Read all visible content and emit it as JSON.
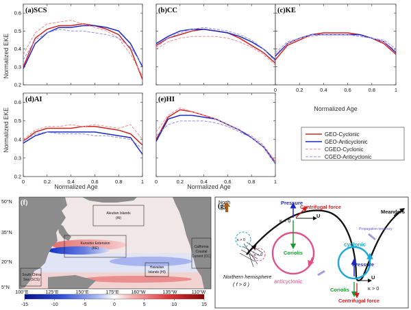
{
  "charts": {
    "xlabel": "Normalized Age",
    "ylabel": "Normalized EKE",
    "xticks": [
      "0",
      "0.2",
      "0.4",
      "0.6",
      "0.8",
      "1"
    ],
    "yticks": [
      "0.2",
      "0.3",
      "0.4",
      "0.5",
      "0.6"
    ],
    "xticks_kev": [
      "0",
      "0.2",
      "0.4",
      "0.6",
      "0.8",
      "1"
    ]
  },
  "legend": {
    "items": [
      {
        "label": "GEO-Cyclonic",
        "color": "#d22020",
        "dash": false
      },
      {
        "label": "GEO-Anticyclonic",
        "color": "#1a28c8",
        "dash": false
      },
      {
        "label": "CGEO-Cyclonic",
        "color": "#f08a8a",
        "dash": true
      },
      {
        "label": "CGEO-Anticyclonic",
        "color": "#8a90f0",
        "dash": true
      }
    ]
  },
  "chart_data": [
    {
      "type": "line",
      "panel": "(a)",
      "title": "SCS",
      "ylim": [
        0.2,
        0.65
      ],
      "xlim": [
        0,
        1
      ],
      "x": [
        0,
        0.1,
        0.2,
        0.3,
        0.4,
        0.5,
        0.6,
        0.7,
        0.8,
        0.9,
        1
      ],
      "series": [
        {
          "name": "GEO-Cyclonic",
          "values": [
            0.3,
            0.46,
            0.51,
            0.53,
            0.53,
            0.54,
            0.53,
            0.51,
            0.48,
            0.4,
            0.23
          ]
        },
        {
          "name": "GEO-Anticyclonic",
          "values": [
            0.29,
            0.43,
            0.49,
            0.52,
            0.52,
            0.53,
            0.53,
            0.52,
            0.5,
            0.43,
            0.3
          ]
        },
        {
          "name": "CGEO-Cyclonic",
          "values": [
            0.37,
            0.49,
            0.54,
            0.55,
            0.56,
            0.54,
            0.52,
            0.5,
            0.46,
            0.37,
            0.25
          ]
        },
        {
          "name": "CGEO-Anticyclonic",
          "values": [
            0.34,
            0.45,
            0.49,
            0.51,
            0.5,
            0.5,
            0.49,
            0.48,
            0.46,
            0.41,
            0.31
          ]
        }
      ]
    },
    {
      "type": "line",
      "panel": "(b)",
      "title": "CC",
      "ylim": [
        0.2,
        0.65
      ],
      "xlim": [
        0,
        1
      ],
      "x": [
        0,
        0.1,
        0.2,
        0.3,
        0.4,
        0.5,
        0.6,
        0.7,
        0.8,
        0.9,
        1
      ],
      "series": [
        {
          "name": "GEO-Cyclonic",
          "values": [
            0.42,
            0.46,
            0.48,
            0.5,
            0.51,
            0.5,
            0.49,
            0.46,
            0.42,
            0.38,
            0.32
          ]
        },
        {
          "name": "GEO-Anticyclonic",
          "values": [
            0.43,
            0.47,
            0.5,
            0.51,
            0.51,
            0.5,
            0.49,
            0.47,
            0.44,
            0.4,
            0.34
          ]
        },
        {
          "name": "CGEO-Cyclonic",
          "values": [
            0.4,
            0.44,
            0.46,
            0.47,
            0.47,
            0.47,
            0.46,
            0.44,
            0.41,
            0.37,
            0.31
          ]
        },
        {
          "name": "CGEO-Anticyclonic",
          "values": [
            0.41,
            0.46,
            0.49,
            0.51,
            0.52,
            0.51,
            0.5,
            0.48,
            0.45,
            0.4,
            0.33
          ]
        }
      ]
    },
    {
      "type": "line",
      "panel": "(c)",
      "title": "KE",
      "ylim": [
        0.2,
        0.65
      ],
      "xlim": [
        0,
        1
      ],
      "x": [
        0,
        0.1,
        0.2,
        0.3,
        0.4,
        0.5,
        0.6,
        0.7,
        0.8,
        0.9,
        1
      ],
      "series": [
        {
          "name": "GEO-Cyclonic",
          "values": [
            0.34,
            0.42,
            0.45,
            0.48,
            0.49,
            0.49,
            0.49,
            0.48,
            0.46,
            0.43,
            0.37
          ]
        },
        {
          "name": "GEO-Anticyclonic",
          "values": [
            0.36,
            0.43,
            0.46,
            0.48,
            0.48,
            0.48,
            0.48,
            0.48,
            0.46,
            0.44,
            0.38
          ]
        },
        {
          "name": "CGEO-Cyclonic",
          "values": [
            0.37,
            0.43,
            0.46,
            0.47,
            0.48,
            0.48,
            0.48,
            0.47,
            0.46,
            0.44,
            0.39
          ]
        },
        {
          "name": "CGEO-Anticyclonic",
          "values": [
            0.38,
            0.44,
            0.46,
            0.48,
            0.48,
            0.48,
            0.48,
            0.47,
            0.46,
            0.45,
            0.4
          ]
        }
      ]
    },
    {
      "type": "line",
      "panel": "(d)",
      "title": "AI",
      "ylim": [
        0.2,
        0.65
      ],
      "xlim": [
        0,
        1
      ],
      "x": [
        0,
        0.1,
        0.2,
        0.3,
        0.4,
        0.5,
        0.6,
        0.7,
        0.8,
        0.9,
        1
      ],
      "series": [
        {
          "name": "GEO-Cyclonic",
          "values": [
            0.39,
            0.44,
            0.46,
            0.46,
            0.46,
            0.47,
            0.47,
            0.46,
            0.45,
            0.43,
            0.37
          ]
        },
        {
          "name": "GEO-Anticyclonic",
          "values": [
            0.38,
            0.42,
            0.44,
            0.44,
            0.44,
            0.44,
            0.44,
            0.43,
            0.42,
            0.41,
            0.32
          ]
        },
        {
          "name": "CGEO-Cyclonic",
          "values": [
            0.4,
            0.45,
            0.47,
            0.47,
            0.48,
            0.47,
            0.48,
            0.47,
            0.46,
            0.48,
            0.4
          ]
        },
        {
          "name": "CGEO-Anticyclonic",
          "values": [
            0.39,
            0.43,
            0.44,
            0.43,
            0.43,
            0.43,
            0.42,
            0.42,
            0.41,
            0.4,
            0.35
          ]
        }
      ]
    },
    {
      "type": "line",
      "panel": "(e)",
      "title": "HI",
      "ylim": [
        0.2,
        0.65
      ],
      "xlim": [
        0,
        1
      ],
      "x": [
        0,
        0.1,
        0.2,
        0.3,
        0.4,
        0.5,
        0.6,
        0.7,
        0.8,
        0.9,
        1
      ],
      "series": [
        {
          "name": "GEO-Cyclonic",
          "values": [
            0.4,
            0.52,
            0.56,
            0.55,
            0.53,
            0.51,
            0.48,
            0.45,
            0.41,
            0.36,
            0.28
          ]
        },
        {
          "name": "GEO-Anticyclonic",
          "values": [
            0.39,
            0.51,
            0.53,
            0.53,
            0.52,
            0.51,
            0.48,
            0.45,
            0.41,
            0.36,
            0.27
          ]
        },
        {
          "name": "CGEO-Cyclonic",
          "values": [
            0.44,
            0.53,
            0.57,
            0.55,
            0.53,
            0.51,
            0.48,
            0.45,
            0.42,
            0.37,
            0.28
          ]
        },
        {
          "name": "CGEO-Anticyclonic",
          "values": [
            0.42,
            0.48,
            0.5,
            0.5,
            0.5,
            0.49,
            0.47,
            0.44,
            0.41,
            0.36,
            0.27
          ]
        }
      ]
    }
  ],
  "map": {
    "panel": "(f)",
    "lat_labels": [
      "50°N",
      "35°N",
      "20°N",
      "5°N"
    ],
    "lon_labels": [
      "100°E",
      "125°E",
      "150°E",
      "175°E",
      "160°W",
      "135°W",
      "110°W"
    ],
    "colorbar_ticks": [
      "-15",
      "-10",
      "-5",
      "0",
      "5",
      "10",
      "15"
    ],
    "regions": [
      {
        "line1": "Aleutian Islands",
        "line2": "(AI)"
      },
      {
        "line1": "Kuroshio Extension",
        "line2": "(KE)"
      },
      {
        "line1": "California",
        "line2": "Coastal",
        "line3": "Current (CC)"
      },
      {
        "line1": "Hawaiian",
        "line2": "Islands (HI)"
      },
      {
        "line1": "South China",
        "line2": "Sea (SCS)"
      }
    ]
  },
  "diagram": {
    "panel": "(g)",
    "north": "North",
    "pressure_top": "Pressure",
    "centrifugal_top": "Centrifugal force",
    "meanders": "Meanders",
    "kappa_neg": "κ < 0",
    "u_top": "U",
    "kappa_gt0_small": "κ > 0",
    "kappa_lt0_small": "κ < 0",
    "coriolis_left": "Coriolis",
    "propagation": "Propagation tendency",
    "cyclonic": "cyclonic",
    "pressure_right": "Pressure",
    "hemisphere": "Northern hemisphere",
    "f_label": "( f > 0 )",
    "anticyclonic": "anticyclonic",
    "coriolis_right": "Coriolis",
    "u_right": "U",
    "kappa_pos": "κ > 0",
    "centrifugal_bottom": "Centrifugal force"
  }
}
